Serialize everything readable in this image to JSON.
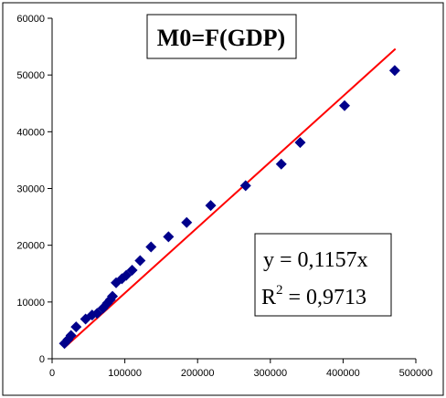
{
  "chart_data": {
    "type": "scatter",
    "title": "M0=F(GDP)",
    "xlabel": "",
    "ylabel": "",
    "xlim": [
      0,
      500000
    ],
    "ylim": [
      0,
      60000
    ],
    "x_ticks": [
      "0",
      "100000",
      "200000",
      "300000",
      "400000",
      "500000"
    ],
    "y_ticks": [
      "0",
      "10000",
      "20000",
      "30000",
      "40000",
      "50000",
      "60000"
    ],
    "grid": false,
    "legend": "none",
    "series": [
      {
        "marker": "diamond",
        "color": "#00008B",
        "points": [
          [
            17000,
            2700
          ],
          [
            22000,
            3400
          ],
          [
            26000,
            4100
          ],
          [
            33000,
            5600
          ],
          [
            46000,
            7000
          ],
          [
            55000,
            7700
          ],
          [
            62000,
            8000
          ],
          [
            70000,
            8900
          ],
          [
            76000,
            9800
          ],
          [
            80000,
            10400
          ],
          [
            83000,
            11000
          ],
          [
            88000,
            13400
          ],
          [
            96000,
            14100
          ],
          [
            102000,
            14700
          ],
          [
            110000,
            15600
          ],
          [
            121000,
            17300
          ],
          [
            136000,
            19700
          ],
          [
            160000,
            21500
          ],
          [
            185000,
            24000
          ],
          [
            218000,
            27000
          ],
          [
            266000,
            30500
          ],
          [
            315000,
            34300
          ],
          [
            341000,
            38100
          ],
          [
            402000,
            44600
          ],
          [
            471000,
            50800
          ]
        ]
      }
    ],
    "trendline": {
      "color": "#FF0000",
      "slope": 0.1157,
      "x_range": [
        17000,
        472000
      ]
    },
    "annotations": {
      "equation": "y = 0,1157x",
      "r2_label": "R",
      "r2_exp": "2",
      "r2_value": " = 0,9713"
    }
  }
}
